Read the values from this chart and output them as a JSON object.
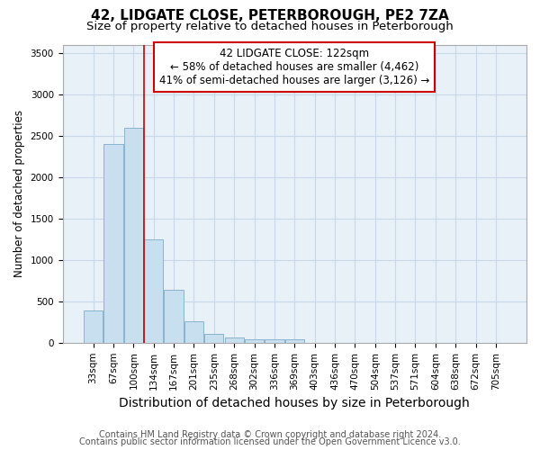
{
  "title1": "42, LIDGATE CLOSE, PETERBOROUGH, PE2 7ZA",
  "title2": "Size of property relative to detached houses in Peterborough",
  "xlabel": "Distribution of detached houses by size in Peterborough",
  "ylabel": "Number of detached properties",
  "categories": [
    "33sqm",
    "67sqm",
    "100sqm",
    "134sqm",
    "167sqm",
    "201sqm",
    "235sqm",
    "268sqm",
    "302sqm",
    "336sqm",
    "369sqm",
    "403sqm",
    "436sqm",
    "470sqm",
    "504sqm",
    "537sqm",
    "571sqm",
    "604sqm",
    "638sqm",
    "672sqm",
    "705sqm"
  ],
  "values": [
    390,
    2400,
    2600,
    1250,
    640,
    255,
    110,
    60,
    45,
    45,
    40,
    0,
    0,
    0,
    0,
    0,
    0,
    0,
    0,
    0,
    0
  ],
  "bar_color": "#c8dff0",
  "bar_edge_color": "#8ab4cc",
  "vline_x": 2.5,
  "vline_color": "#cc0000",
  "annotation_line1": "42 LIDGATE CLOSE: 122sqm",
  "annotation_line2": "← 58% of detached houses are smaller (4,462)",
  "annotation_line3": "41% of semi-detached houses are larger (3,126) →",
  "annotation_box_color": "#cc0000",
  "ylim": [
    0,
    3600
  ],
  "yticks": [
    0,
    500,
    1000,
    1500,
    2000,
    2500,
    3000,
    3500
  ],
  "grid_color": "#c8d8e8",
  "background_color": "#e8f0f8",
  "footer1": "Contains HM Land Registry data © Crown copyright and database right 2024.",
  "footer2": "Contains public sector information licensed under the Open Government Licence v3.0.",
  "title1_fontsize": 11,
  "title2_fontsize": 9.5,
  "xlabel_fontsize": 10,
  "ylabel_fontsize": 8.5,
  "tick_fontsize": 7.5,
  "annotation_fontsize": 8.5,
  "footer_fontsize": 7
}
